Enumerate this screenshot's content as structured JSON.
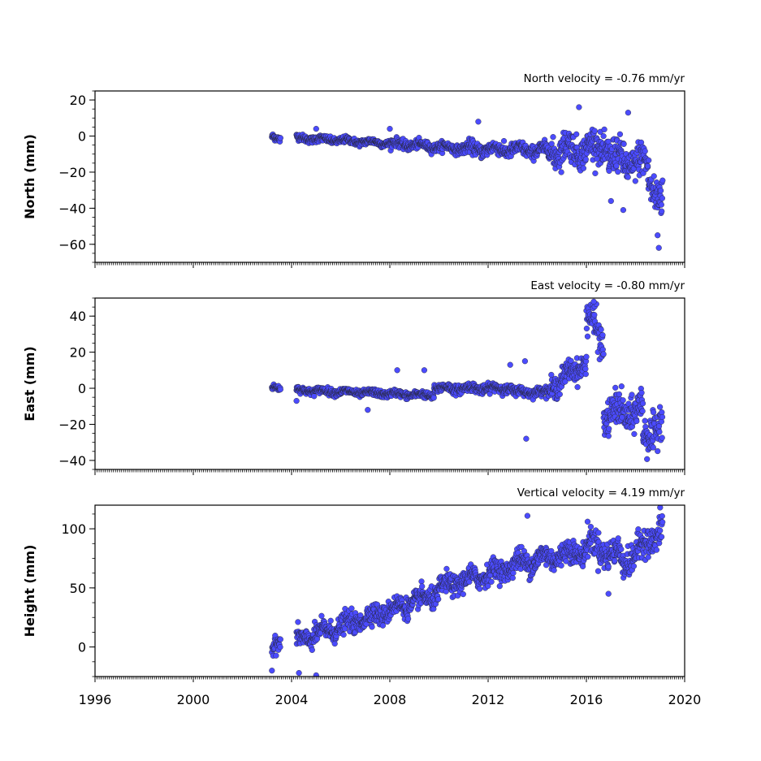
{
  "chart_data": [
    {
      "type": "scatter",
      "title": "North velocity = -0.76 mm/yr",
      "ylabel": "North (mm)",
      "xlim": [
        1996,
        2020
      ],
      "ylim": [
        -70,
        25
      ],
      "yticks": [
        20,
        0,
        -20,
        -40,
        -60
      ],
      "ytick_labels": [
        "20",
        "0",
        "−20",
        "−40",
        "−60"
      ],
      "marker_color": "#4b4bff",
      "segments": [
        {
          "x": [
            2003.2,
            2003.55
          ],
          "trend": [
            -1,
            -2
          ],
          "noise": 1.5
        },
        {
          "x": [
            2004.2,
            2008.0
          ],
          "trend": [
            -1,
            -4
          ],
          "noise": 1.5
        },
        {
          "x": [
            2008.0,
            2011.0
          ],
          "trend": [
            -4,
            -7
          ],
          "noise": 2
        },
        {
          "x": [
            2011.0,
            2014.5
          ],
          "trend": [
            -7,
            -8
          ],
          "noise": 3
        },
        {
          "x": [
            2014.5,
            2016.9
          ],
          "trend": [
            -8,
            -6
          ],
          "noise": 7
        },
        {
          "x": [
            2016.9,
            2018.5
          ],
          "trend": [
            -12,
            -16
          ],
          "noise": 8
        },
        {
          "x": [
            2018.5,
            2019.1
          ],
          "trend": [
            -22,
            -35
          ],
          "noise": 10
        }
      ],
      "outliers": [
        {
          "x": 2005.0,
          "y": 4
        },
        {
          "x": 2008.0,
          "y": 4
        },
        {
          "x": 2011.6,
          "y": 8
        },
        {
          "x": 2015.7,
          "y": 16
        },
        {
          "x": 2017.7,
          "y": 13
        },
        {
          "x": 2017.0,
          "y": -36
        },
        {
          "x": 2017.5,
          "y": -41
        },
        {
          "x": 2018.9,
          "y": -55
        },
        {
          "x": 2018.95,
          "y": -62
        }
      ]
    },
    {
      "type": "scatter",
      "title": "East velocity = -0.80 mm/yr",
      "ylabel": "East (mm)",
      "xlim": [
        1996,
        2020
      ],
      "ylim": [
        -45,
        50
      ],
      "yticks": [
        40,
        20,
        0,
        -20,
        -40
      ],
      "ytick_labels": [
        "40",
        "20",
        "0",
        "−20",
        "−40"
      ],
      "marker_color": "#4b4bff",
      "segments": [
        {
          "x": [
            2003.2,
            2003.55
          ],
          "trend": [
            0,
            0
          ],
          "noise": 1.2
        },
        {
          "x": [
            2004.2,
            2009.8
          ],
          "trend": [
            -1,
            -4
          ],
          "noise": 1.5
        },
        {
          "x": [
            2009.8,
            2013.0
          ],
          "trend": [
            0,
            0
          ],
          "noise": 2
        },
        {
          "x": [
            2013.0,
            2014.5
          ],
          "trend": [
            -2,
            -2
          ],
          "noise": 2
        },
        {
          "x": [
            2014.5,
            2016.0
          ],
          "trend": [
            0,
            15
          ],
          "noise": 5
        },
        {
          "x": [
            2016.0,
            2016.7
          ],
          "trend": [
            40,
            25
          ],
          "noise": 8
        },
        {
          "x": [
            2016.7,
            2018.3
          ],
          "trend": [
            -15,
            -12
          ],
          "noise": 8
        },
        {
          "x": [
            2018.3,
            2019.1
          ],
          "trend": [
            -30,
            -15
          ],
          "noise": 9
        }
      ],
      "outliers": [
        {
          "x": 2008.3,
          "y": 10
        },
        {
          "x": 2009.4,
          "y": 10
        },
        {
          "x": 2012.9,
          "y": 13
        },
        {
          "x": 2013.5,
          "y": 15
        },
        {
          "x": 2013.55,
          "y": -28
        },
        {
          "x": 2016.3,
          "y": 48
        },
        {
          "x": 2004.2,
          "y": -7
        },
        {
          "x": 2007.1,
          "y": -12
        }
      ]
    },
    {
      "type": "scatter",
      "title": "Vertical velocity = 4.19 mm/yr",
      "ylabel": "Height (mm)",
      "xlim": [
        1996,
        2020
      ],
      "ylim": [
        -25,
        120
      ],
      "yticks": [
        100,
        50,
        0
      ],
      "ytick_labels": [
        "100",
        "50",
        "0"
      ],
      "marker_color": "#4b4bff",
      "segments": [
        {
          "x": [
            2003.2,
            2003.55
          ],
          "trend": [
            -5,
            5
          ],
          "noise": 6
        },
        {
          "x": [
            2004.2,
            2010.0
          ],
          "trend": [
            5,
            45
          ],
          "noise": 7
        },
        {
          "x": [
            2010.0,
            2013.0
          ],
          "trend": [
            50,
            68
          ],
          "noise": 7
        },
        {
          "x": [
            2013.0,
            2016.0
          ],
          "trend": [
            70,
            82
          ],
          "noise": 8
        },
        {
          "x": [
            2016.0,
            2017.5
          ],
          "trend": [
            88,
            75
          ],
          "noise": 10
        },
        {
          "x": [
            2017.5,
            2019.1
          ],
          "trend": [
            70,
            100
          ],
          "noise": 10
        }
      ],
      "outliers": [
        {
          "x": 2003.2,
          "y": -20
        },
        {
          "x": 2004.3,
          "y": -22
        },
        {
          "x": 2005.0,
          "y": -24
        },
        {
          "x": 2013.6,
          "y": 111
        },
        {
          "x": 2016.9,
          "y": 45
        },
        {
          "x": 2019.0,
          "y": 118
        }
      ]
    }
  ],
  "x_axis": {
    "ticks": [
      1996,
      2000,
      2004,
      2008,
      2012,
      2016,
      2020
    ],
    "tick_labels": [
      "1996",
      "2000",
      "2004",
      "2008",
      "2012",
      "2016",
      "2020"
    ],
    "minor_per_major": 48
  }
}
